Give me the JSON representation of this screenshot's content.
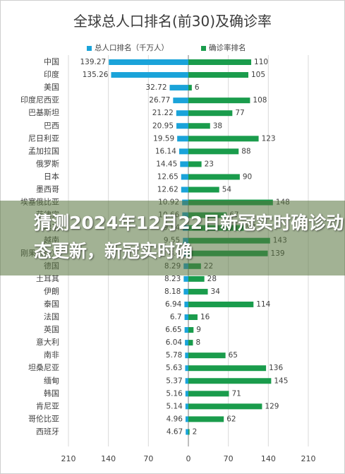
{
  "overlay": {
    "headline": "猜测2024年12月22日新冠实时确诊动态更新，新冠实时确"
  },
  "colors": {
    "population": "#1aa3d9",
    "confirmed": "#1a9c4c",
    "axis": "#7f7f7f",
    "grid": "#d9d9d9",
    "text": "#404040"
  },
  "chart_data": {
    "type": "bar",
    "orientation": "horizontal-butterfly",
    "title": "全球总人口排名(前30)及确诊率",
    "categories": [
      "中国",
      "印度",
      "美国",
      "印度尼西亚",
      "巴基斯坦",
      "巴西",
      "尼日利亚",
      "孟加拉国",
      "俄罗斯",
      "日本",
      "墨西哥",
      "埃塞俄比亚",
      "菲律宾",
      "埃及",
      "越南",
      "刚果（金）",
      "德国",
      "土耳其",
      "伊朗",
      "泰国",
      "法国",
      "英国",
      "意大利",
      "南非",
      "坦桑尼亚",
      "缅甸",
      "韩国",
      "肯尼亚",
      "哥伦比亚",
      "西班牙"
    ],
    "series": [
      {
        "name": "总人口排名（千万人）",
        "values": [
          139.27,
          135.26,
          32.72,
          26.77,
          21.22,
          20.95,
          19.59,
          16.14,
          14.45,
          12.65,
          12.62,
          10.92,
          10.66,
          9.84,
          9.55,
          8.4,
          8.29,
          8.23,
          8.18,
          6.94,
          6.7,
          6.65,
          6.04,
          5.78,
          5.63,
          5.37,
          5.16,
          5.14,
          4.96,
          4.67
        ]
      },
      {
        "name": "确诊率排名",
        "values": [
          110,
          105,
          6,
          108,
          77,
          38,
          123,
          88,
          23,
          90,
          54,
          148,
          67,
          97,
          143,
          139,
          22,
          28,
          34,
          114,
          16,
          9,
          8,
          65,
          136,
          145,
          71,
          129,
          62,
          2
        ]
      }
    ],
    "xlim": [
      -210,
      210
    ],
    "xticks": [
      "210",
      "140",
      "70",
      "0",
      "70",
      "140",
      "210"
    ],
    "legend_position": "top"
  }
}
